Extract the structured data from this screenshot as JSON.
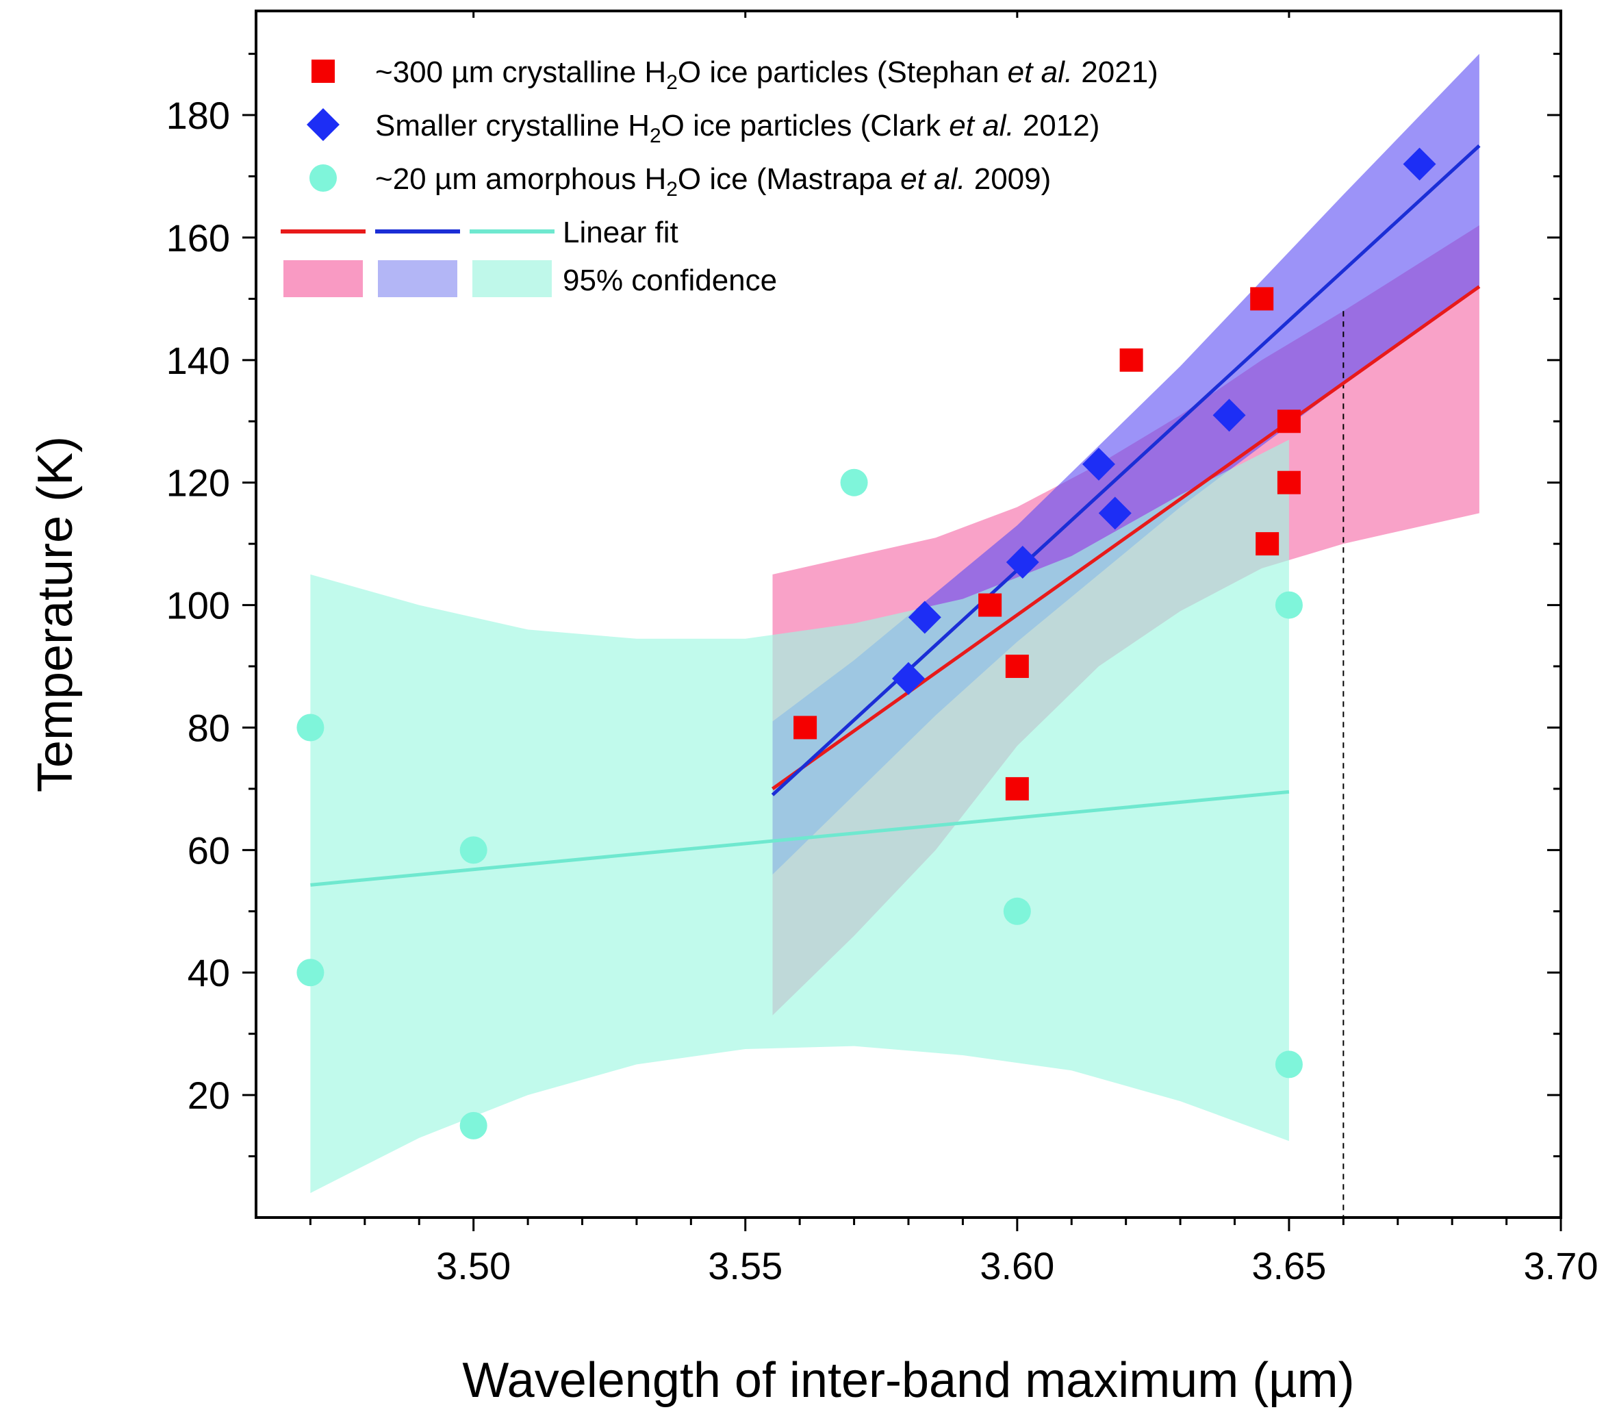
{
  "chart_data": {
    "type": "scatter",
    "xlabel": "Wavelength of inter-band maximum (µm)",
    "ylabel": "Temperature (K)",
    "xlim": [
      3.46,
      3.7
    ],
    "ylim": [
      0,
      197
    ],
    "x_ticks": [
      "3.50",
      "3.55",
      "3.60",
      "3.65",
      "3.70"
    ],
    "y_ticks": [
      "20",
      "40",
      "60",
      "80",
      "100",
      "120",
      "140",
      "160",
      "180"
    ],
    "vertical_reference_line_x": 3.66,
    "legend": {
      "position": "top-left",
      "entries": [
        {
          "pre": "~300 µm crystalline H",
          "sub": "2",
          "mid": "O ice particles (Stephan ",
          "em": "et al.",
          "post": " 2021)",
          "marker": "square",
          "color": "#f50000"
        },
        {
          "pre": "Smaller crystalline H",
          "sub": "2",
          "mid": "O ice particles (Clark ",
          "em": "et al.",
          "post": " 2012)",
          "marker": "diamond",
          "color": "#1d2ef5"
        },
        {
          "pre": "~20 µm amorphous H",
          "sub": "2",
          "mid": "O ice (Mastrapa ",
          "em": "et al.",
          "post": " 2009)",
          "marker": "circle",
          "color": "#7ff5da"
        }
      ],
      "fit_label": "Linear fit",
      "band_label": "95% confidence"
    },
    "series": [
      {
        "name": "~300 µm crystalline H2O ice particles (Stephan et al. 2021)",
        "marker": "square",
        "color": "#f50000",
        "points": [
          [
            3.561,
            80
          ],
          [
            3.595,
            100
          ],
          [
            3.6,
            90
          ],
          [
            3.6,
            70
          ],
          [
            3.621,
            140
          ],
          [
            3.645,
            150
          ],
          [
            3.646,
            110
          ],
          [
            3.65,
            130
          ],
          [
            3.65,
            120
          ]
        ],
        "fit": {
          "x": [
            3.555,
            3.685
          ],
          "y": [
            70,
            152
          ],
          "color": "#e81a1a"
        },
        "band": {
          "color": "#f67ab1",
          "opacity": 0.7,
          "x": [
            3.555,
            3.57,
            3.585,
            3.6,
            3.615,
            3.63,
            3.645,
            3.66,
            3.685
          ],
          "upper": [
            105,
            108,
            111,
            116,
            123,
            131,
            140,
            148,
            162
          ],
          "lower": [
            33,
            46,
            60,
            77,
            90,
            99,
            106,
            110,
            115
          ]
        }
      },
      {
        "name": "Smaller crystalline H2O ice particles (Clark et al. 2012)",
        "marker": "diamond",
        "color": "#1d2ef5",
        "points": [
          [
            3.583,
            98
          ],
          [
            3.58,
            88
          ],
          [
            3.601,
            107
          ],
          [
            3.615,
            123
          ],
          [
            3.618,
            115
          ],
          [
            3.639,
            131
          ],
          [
            3.674,
            172
          ]
        ],
        "fit": {
          "x": [
            3.555,
            3.685
          ],
          "y": [
            69,
            175
          ],
          "color": "#1b2ed6"
        },
        "band": {
          "color": "#5a4bf4",
          "opacity": 0.6,
          "x": [
            3.555,
            3.57,
            3.585,
            3.6,
            3.615,
            3.63,
            3.645,
            3.66,
            3.685
          ],
          "upper": [
            81,
            91,
            102,
            113,
            126,
            139,
            153,
            167,
            190
          ],
          "lower": [
            56,
            69,
            82,
            94,
            105,
            116,
            126,
            136,
            152
          ]
        }
      },
      {
        "name": "~20 µm amorphous H2O ice (Mastrapa et al. 2009)",
        "marker": "circle",
        "color": "#7ff5da",
        "points": [
          [
            3.47,
            80
          ],
          [
            3.47,
            40
          ],
          [
            3.5,
            60
          ],
          [
            3.5,
            15
          ],
          [
            3.57,
            120
          ],
          [
            3.6,
            50
          ],
          [
            3.65,
            100
          ],
          [
            3.65,
            25
          ]
        ],
        "fit": {
          "x": [
            3.47,
            3.65
          ],
          "y": [
            54.3,
            69.5
          ],
          "color": "#6fe8cf"
        },
        "band": {
          "color": "#9ff7e2",
          "opacity": 0.65,
          "x": [
            3.47,
            3.49,
            3.51,
            3.53,
            3.55,
            3.57,
            3.59,
            3.61,
            3.63,
            3.65
          ],
          "upper": [
            105,
            100,
            96,
            94.5,
            94.5,
            97,
            101,
            108,
            118,
            127
          ],
          "lower": [
            4,
            13,
            20,
            25,
            27.5,
            28,
            26.5,
            24,
            19,
            12.5
          ]
        }
      }
    ]
  }
}
